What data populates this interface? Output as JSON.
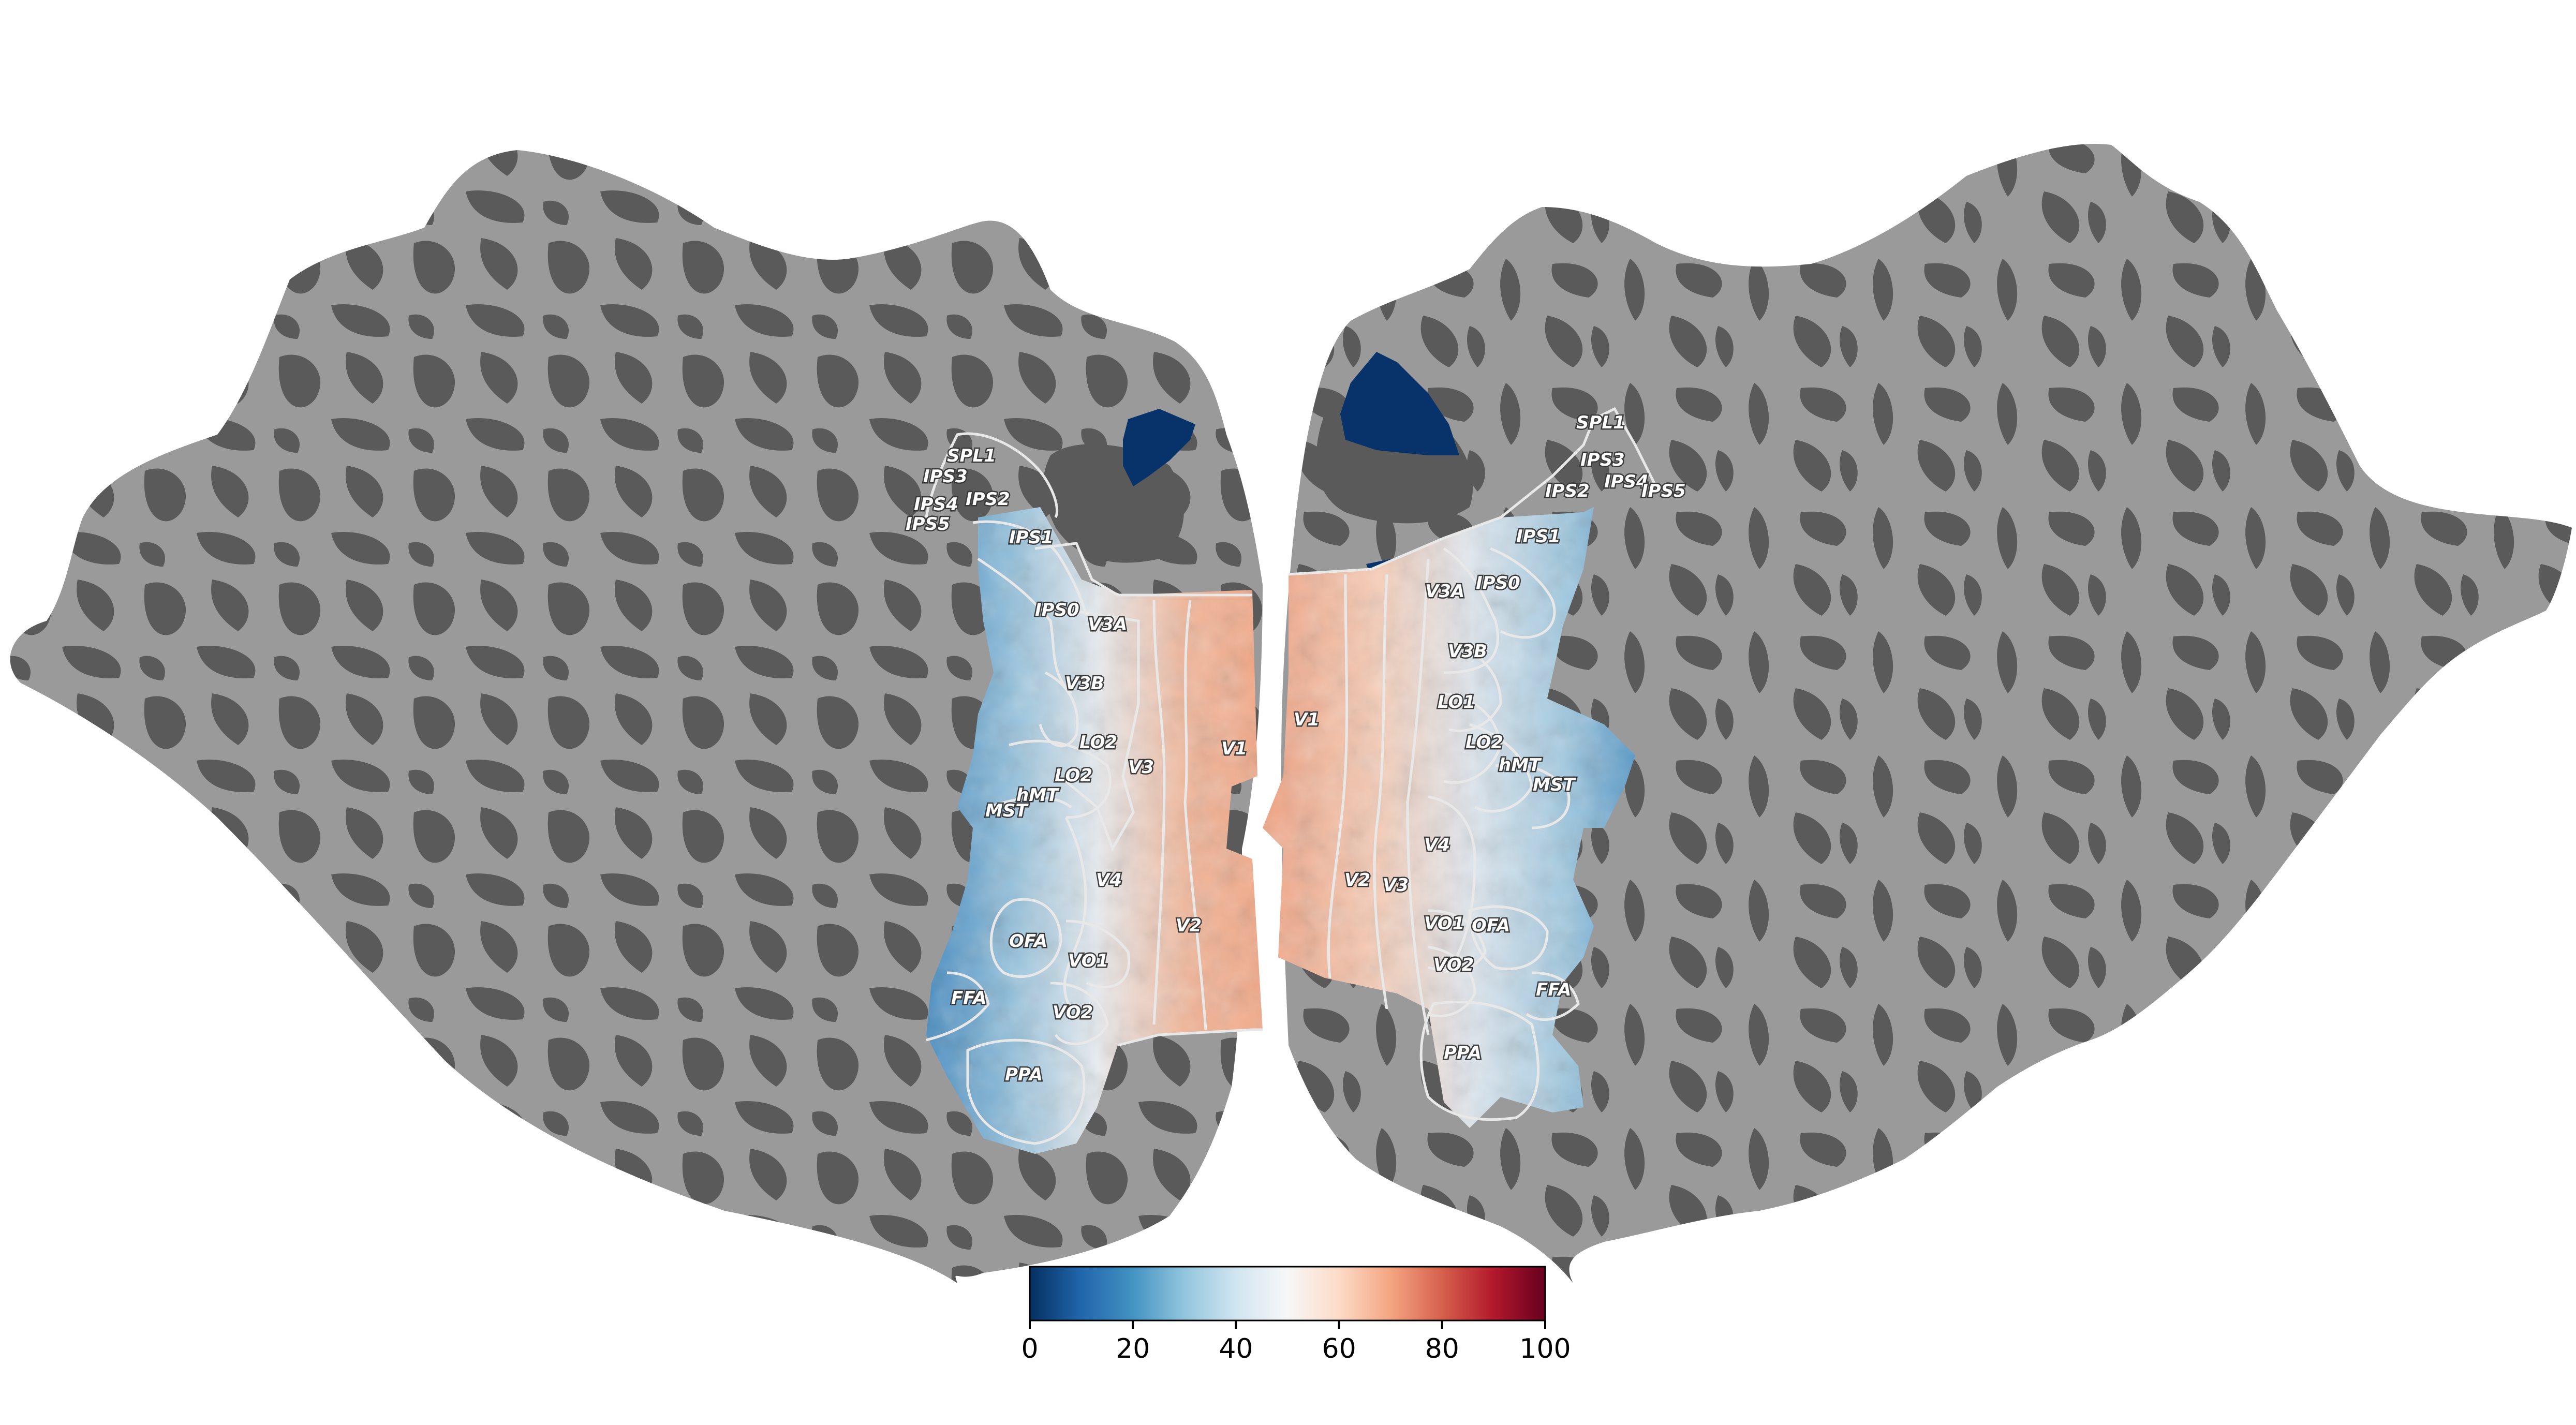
{
  "colors": {
    "sulci": "#5a5a5a",
    "gyri": "#9a9a9a",
    "roi_outline": "#e8e8e8",
    "colormap": "RdBu_r"
  },
  "roi_labels": {
    "left": [
      "SPL1",
      "IPS3",
      "IPS4",
      "IPS5",
      "IPS2",
      "IPS1",
      "IPS0",
      "V3A",
      "V3B",
      "LO2",
      "LO2",
      "hMT",
      "MST",
      "V3",
      "V1",
      "V4",
      "V2",
      "OFA",
      "VO1",
      "FFA",
      "VO2",
      "PPA"
    ],
    "right": [
      "SPL1",
      "IPS3",
      "IPS4",
      "IPS5",
      "IPS2",
      "IPS1",
      "IPS0",
      "V3A",
      "V3B",
      "LO1",
      "V1",
      "LO2",
      "hMT",
      "MST",
      "V4",
      "V2",
      "V3",
      "VO1",
      "OFA",
      "VO2",
      "FFA",
      "PPA"
    ]
  },
  "colorbar": {
    "colormap": "RdBu_r",
    "min": 0,
    "max": 100,
    "ticks": [
      "0",
      "20",
      "40",
      "60",
      "80",
      "100"
    ]
  }
}
